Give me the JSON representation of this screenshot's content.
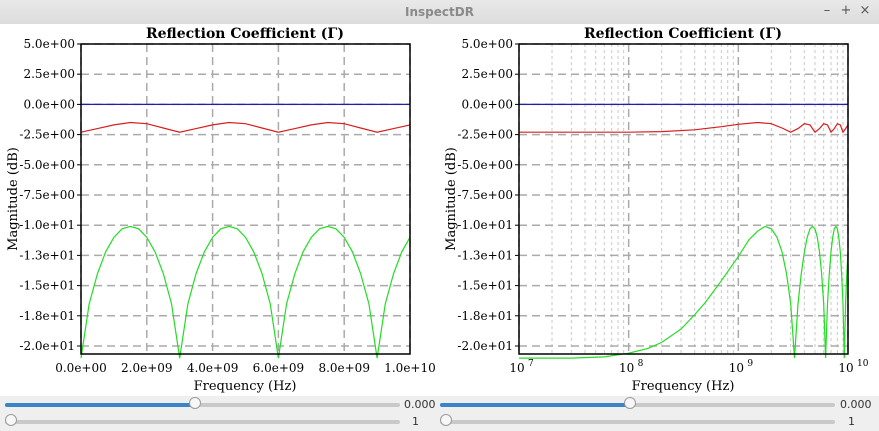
{
  "window": {
    "title": "InspectDR",
    "minimize_glyph": "–",
    "maximize_glyph": "+",
    "close_glyph": "×"
  },
  "plots": [
    {
      "title": "Reflection Coefficient (Γ)",
      "xlabel": "Frequency (Hz)",
      "ylabel": "Magnitude (dB)",
      "x_ticks": [
        "0.0e+00",
        "2.0e+09",
        "4.0e+09",
        "6.0e+09",
        "8.0e+09",
        "1.0e+10"
      ],
      "y_ticks": [
        "5.0e+00",
        "2.5e+00",
        "0.0e+00",
        "-2.5e+00",
        "-5.0e+00",
        "-7.5e+00",
        "-1.0e+01",
        "-1.3e+01",
        "-1.5e+01",
        "-1.8e+01",
        "-2.0e+01"
      ]
    },
    {
      "title": "Reflection Coefficient (Γ)",
      "xlabel": "Frequency (Hz)",
      "ylabel": "Magnitude (dB)",
      "x_ticks": [
        "10",
        "10",
        "10",
        "10"
      ],
      "x_tick_exponents": [
        "7",
        "8",
        "9",
        "10"
      ],
      "y_ticks": [
        "5.0e+00",
        "2.5e+00",
        "0.0e+00",
        "-2.5e+00",
        "-5.0e+00",
        "-7.5e+00",
        "-1.0e+01",
        "-1.3e+01",
        "-1.5e+01",
        "-1.8e+01",
        "-2.0e+01"
      ]
    }
  ],
  "chart_data": [
    {
      "type": "line",
      "title": "Reflection Coefficient (Γ)",
      "xlabel": "Frequency (Hz)",
      "ylabel": "Magnitude (dB)",
      "xscale": "linear",
      "xlim": [
        0,
        10000000000
      ],
      "ylim": [
        -21,
        5
      ],
      "grid": true,
      "series": [
        {
          "color": "#1f1fa8",
          "x": [
            0,
            10000000000
          ],
          "y": [
            0,
            0
          ]
        },
        {
          "color": "#d42020",
          "x": [
            0,
            500000000,
            1000000000,
            1500000000,
            2000000000,
            2500000000,
            3000000000,
            3500000000,
            4000000000,
            4500000000,
            5000000000,
            5500000000,
            6000000000,
            6500000000,
            7000000000,
            7500000000,
            8000000000,
            8500000000,
            9000000000,
            9500000000,
            10000000000
          ],
          "y": [
            -2.3,
            -2.0,
            -1.7,
            -1.5,
            -1.6,
            -1.95,
            -2.3,
            -2.0,
            -1.7,
            -1.5,
            -1.6,
            -1.95,
            -2.3,
            -2.0,
            -1.7,
            -1.5,
            -1.6,
            -1.95,
            -2.3,
            -2.0,
            -1.7
          ]
        },
        {
          "color": "#22dd22",
          "x": [
            0,
            250000000,
            500000000,
            750000000,
            1000000000,
            1250000000,
            1500000000,
            1750000000,
            2000000000,
            2250000000,
            2500000000,
            2750000000,
            3000000000,
            3250000000,
            3500000000,
            3750000000,
            4000000000,
            4250000000,
            4500000000,
            4750000000,
            5000000000,
            5250000000,
            5500000000,
            5750000000,
            6000000000,
            6250000000,
            6500000000,
            6750000000,
            7000000000,
            7250000000,
            7500000000,
            7750000000,
            8000000000,
            8250000000,
            8500000000,
            8750000000,
            9000000000,
            9250000000,
            9500000000,
            9750000000,
            10000000000
          ],
          "y": [
            -21,
            -16.5,
            -14.0,
            -12.2,
            -11.0,
            -10.3,
            -10.1,
            -10.3,
            -11.0,
            -12.2,
            -14.0,
            -16.5,
            -21,
            -16.5,
            -14.0,
            -12.2,
            -11.0,
            -10.3,
            -10.1,
            -10.3,
            -11.0,
            -12.2,
            -14.0,
            -16.5,
            -21,
            -16.5,
            -14.0,
            -12.2,
            -11.0,
            -10.3,
            -10.1,
            -10.3,
            -11.0,
            -12.2,
            -14.0,
            -16.5,
            -21,
            -16.5,
            -14.0,
            -12.2,
            -11.0
          ]
        }
      ]
    },
    {
      "type": "line",
      "title": "Reflection Coefficient (Γ)",
      "xlabel": "Frequency (Hz)",
      "ylabel": "Magnitude (dB)",
      "xscale": "log",
      "xlim": [
        10000000,
        10000000000
      ],
      "ylim": [
        -21,
        5
      ],
      "grid": true,
      "series": [
        {
          "color": "#1f1fa8",
          "x": [
            10000000,
            10000000000
          ],
          "y": [
            0,
            0
          ]
        },
        {
          "color": "#d42020",
          "x": [
            10000000,
            30000000,
            100000000,
            200000000,
            400000000,
            700000000,
            1000000000,
            1500000000,
            2000000000,
            2500000000,
            3000000000,
            3500000000,
            4000000000,
            4500000000,
            5000000000,
            5500000000,
            6000000000,
            6500000000,
            7000000000,
            7500000000,
            8000000000,
            8500000000,
            9000000000,
            9500000000,
            10000000000
          ],
          "y": [
            -2.3,
            -2.3,
            -2.3,
            -2.25,
            -2.1,
            -1.85,
            -1.65,
            -1.5,
            -1.6,
            -1.95,
            -2.3,
            -2.0,
            -1.6,
            -1.7,
            -2.3,
            -2.0,
            -1.6,
            -1.7,
            -2.3,
            -2.0,
            -1.6,
            -1.7,
            -2.3,
            -2.0,
            -1.7
          ]
        },
        {
          "color": "#22dd22",
          "x": [
            10000000,
            30000000,
            60000000,
            100000000,
            150000000,
            200000000,
            300000000,
            400000000,
            500000000,
            700000000,
            1000000000,
            1250000000,
            1500000000,
            1750000000,
            2000000000,
            2250000000,
            2500000000,
            2750000000,
            3000000000,
            3250000000,
            3500000000,
            3750000000,
            4000000000,
            4250000000,
            4500000000,
            4750000000,
            5000000000,
            5250000000,
            5500000000,
            5750000000,
            6000000000,
            6250000000,
            6500000000,
            6750000000,
            7000000000,
            7250000000,
            7500000000,
            7750000000,
            8000000000,
            8250000000,
            8500000000,
            8750000000,
            9000000000,
            9250000000,
            9500000000,
            9750000000,
            10000000000
          ],
          "y": [
            -21,
            -21,
            -20.9,
            -20.6,
            -20.2,
            -19.7,
            -18.6,
            -17.4,
            -16.4,
            -14.6,
            -12.6,
            -11.2,
            -10.5,
            -10.1,
            -10.3,
            -11.0,
            -12.2,
            -14.0,
            -16.5,
            -21,
            -16.5,
            -14.0,
            -12.2,
            -11.0,
            -10.3,
            -10.1,
            -10.3,
            -11.0,
            -12.2,
            -14.0,
            -16.5,
            -21,
            -16.5,
            -14.0,
            -12.2,
            -11.0,
            -10.3,
            -10.1,
            -10.3,
            -11.0,
            -12.2,
            -14.0,
            -16.5,
            -21,
            -16.5,
            -14.0,
            -12.2
          ]
        }
      ]
    }
  ],
  "sliders": [
    {
      "value_label": "0.000",
      "fraction": 0.48
    },
    {
      "value_label": "1",
      "fraction": 0.0
    },
    {
      "value_label": "0.000",
      "fraction": 0.48
    },
    {
      "value_label": "1",
      "fraction": 0.0
    }
  ]
}
